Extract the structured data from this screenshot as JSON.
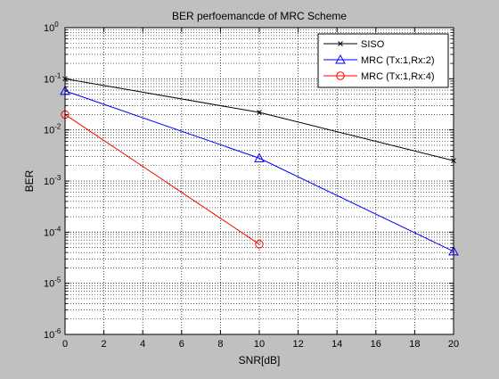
{
  "chart_data": {
    "type": "line",
    "title": "BER perfoemancde of MRC Scheme",
    "xlabel": "SNR[dB]",
    "ylabel": "BER",
    "xlim": [
      0,
      20
    ],
    "ylim": [
      1e-06,
      1
    ],
    "yscale": "log",
    "grid": true,
    "grid_style": "dotted",
    "legend_position": "top-right",
    "x_ticks": [
      "0",
      "2",
      "4",
      "6",
      "8",
      "10",
      "12",
      "14",
      "16",
      "18",
      "20"
    ],
    "y_ticks": [
      {
        "base": "10",
        "exp": "-6"
      },
      {
        "base": "10",
        "exp": "-5"
      },
      {
        "base": "10",
        "exp": "-4"
      },
      {
        "base": "10",
        "exp": "-3"
      },
      {
        "base": "10",
        "exp": "-2"
      },
      {
        "base": "10",
        "exp": "-1"
      },
      {
        "base": "10",
        "exp": "0"
      }
    ],
    "series": [
      {
        "name": "SISO",
        "color": "#000000",
        "marker": "x",
        "x": [
          0,
          10,
          20
        ],
        "y": [
          0.1,
          0.022,
          0.0025
        ]
      },
      {
        "name": "MRC (Tx:1,Rx:2)",
        "color": "#0000ff",
        "marker": "triangle",
        "x": [
          0,
          10,
          20
        ],
        "y": [
          0.058,
          0.0028,
          4.2e-05
        ]
      },
      {
        "name": "MRC (Tx:1,Rx:4)",
        "color": "#ff0000",
        "marker": "circle",
        "x": [
          0,
          10
        ],
        "y": [
          0.02,
          5.8e-05
        ]
      }
    ]
  }
}
